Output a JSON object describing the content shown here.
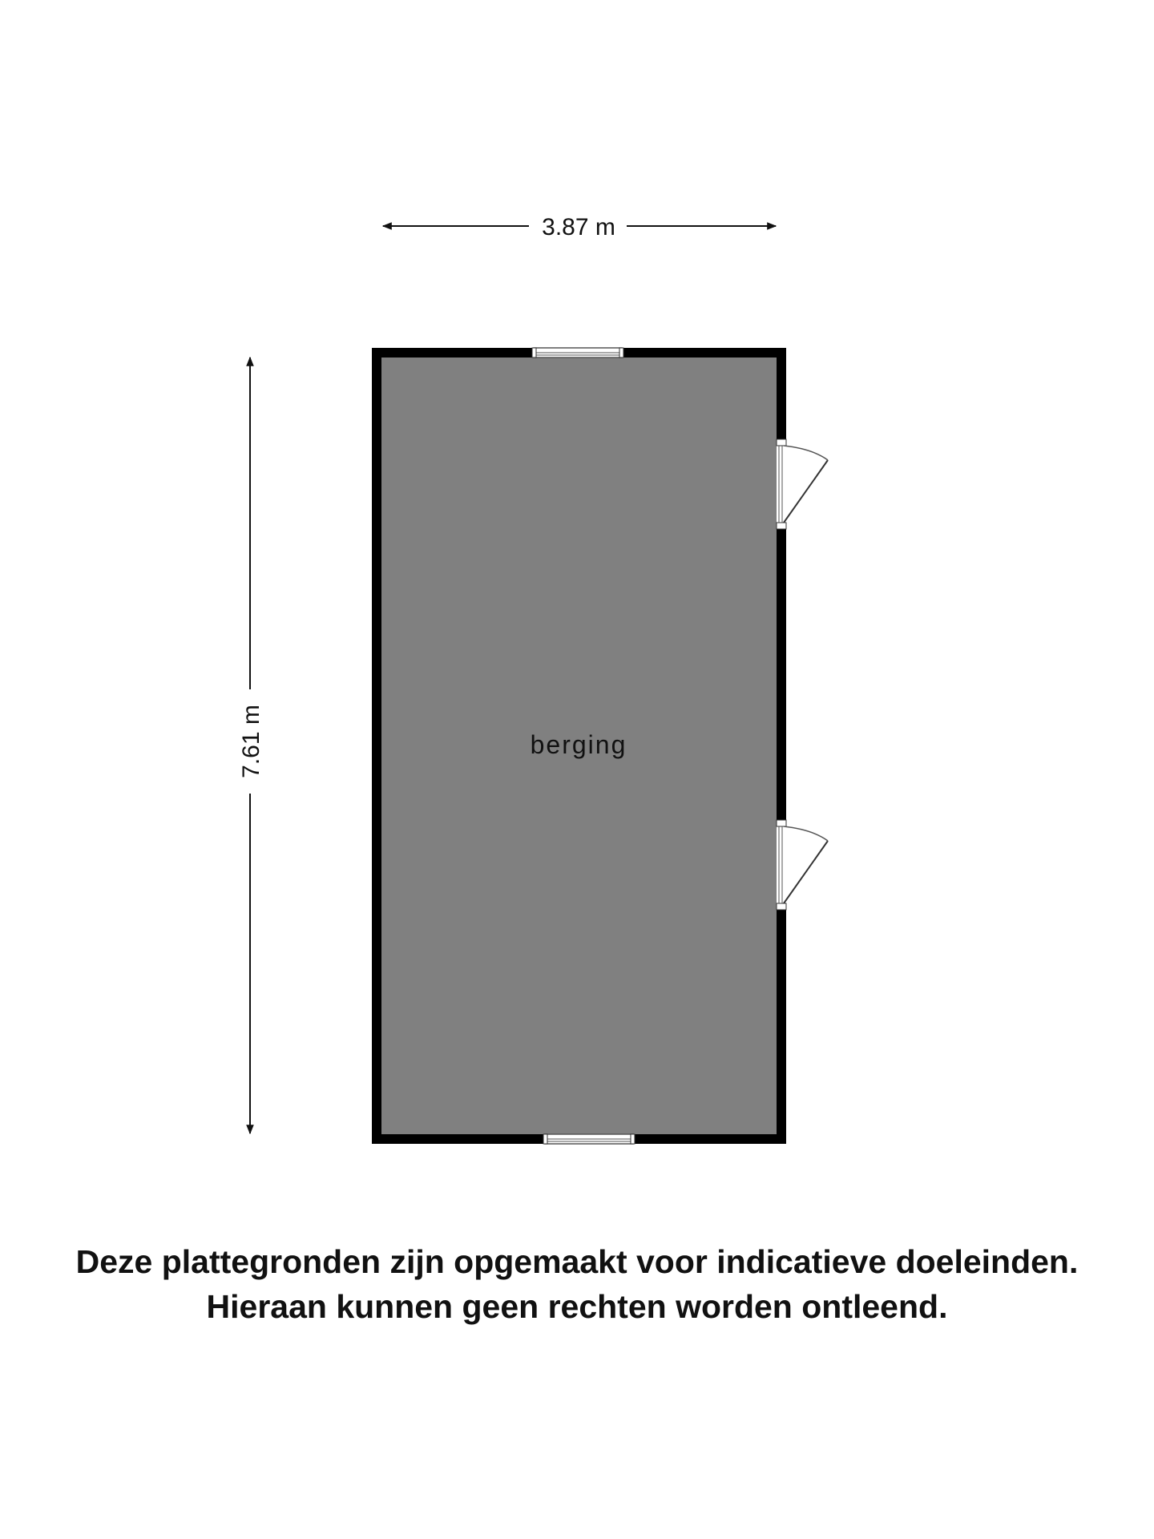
{
  "dimensions": {
    "width_label": "3.87 m",
    "height_label": "7.61 m"
  },
  "room": {
    "name": "berging"
  },
  "disclaimer": {
    "line1": "Deze plattegronden zijn opgemaakt voor indicatieve doeleinden.",
    "line2": "Hieraan kunnen geen rechten worden ontleend."
  },
  "colors": {
    "floor": "#808080",
    "wall": "#000000",
    "background": "#ffffff"
  }
}
